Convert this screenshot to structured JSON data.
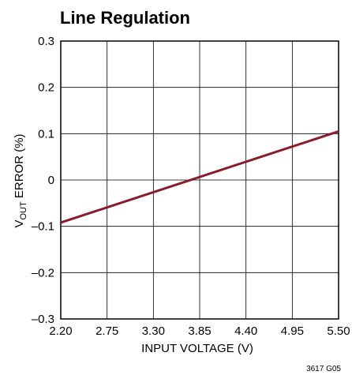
{
  "chart_data": {
    "type": "line",
    "title": "Line Regulation",
    "xlabel": "INPUT VOLTAGE (V)",
    "ylabel_main": "V",
    "ylabel_sub": "OUT",
    "ylabel_rest": " ERROR (%)",
    "xlim": [
      2.2,
      5.5
    ],
    "ylim": [
      -0.3,
      0.3
    ],
    "x_ticks": [
      2.2,
      2.75,
      3.3,
      3.85,
      4.4,
      4.95,
      5.5
    ],
    "x_tick_labels": [
      "2.20",
      "2.75",
      "3.30",
      "3.85",
      "4.40",
      "4.95",
      "5.50"
    ],
    "y_ticks": [
      0.3,
      0.2,
      0.1,
      0,
      -0.1,
      -0.2,
      -0.3
    ],
    "y_tick_labels": [
      "0.3",
      "0.2",
      "0.1",
      "0",
      "–0.1",
      "–0.2",
      "–0.3"
    ],
    "grid": true,
    "series": [
      {
        "color": "#8b1a2b",
        "x": [
          2.2,
          5.5
        ],
        "y": [
          -0.092,
          0.105
        ]
      }
    ],
    "figure_code": "3617 G05"
  }
}
